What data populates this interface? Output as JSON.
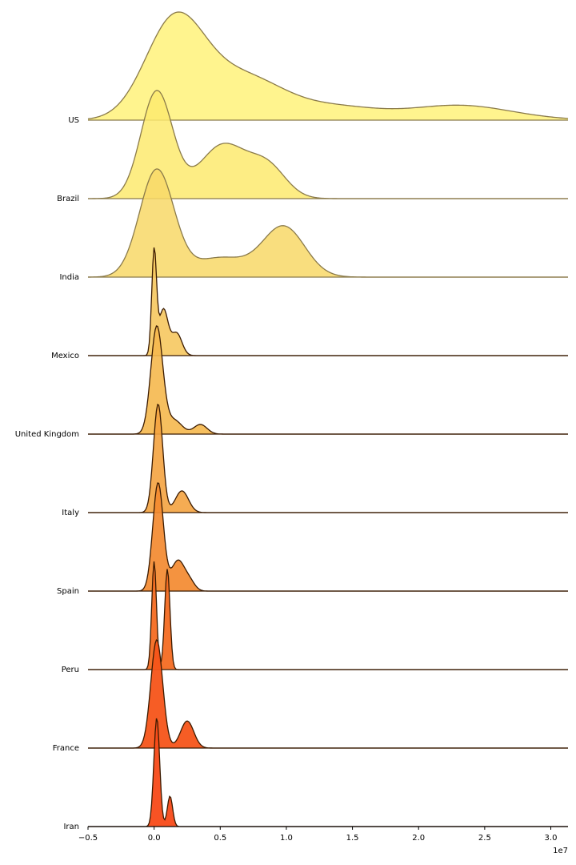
{
  "chart_data": {
    "type": "ridgeline",
    "title": "",
    "xlabel": "",
    "ylabel": "",
    "x_offset_label": "1e7",
    "xlim": [
      -0.5,
      3.13
    ],
    "xticks": [
      {
        "value": -0.5,
        "label": "−0.5"
      },
      {
        "value": 0.0,
        "label": "0.0"
      },
      {
        "value": 0.5,
        "label": "0.5"
      },
      {
        "value": 1.0,
        "label": "1.0"
      },
      {
        "value": 1.5,
        "label": "1.5"
      },
      {
        "value": 2.0,
        "label": "2.0"
      },
      {
        "value": 2.5,
        "label": "2.5"
      },
      {
        "value": 3.0,
        "label": "3.0"
      }
    ],
    "series": [
      {
        "name": "US",
        "color": "#fff27a",
        "edge": "#8a7a4a",
        "opacity": 0.85,
        "peaks": [
          {
            "mu": 0.15,
            "sigma": 0.22,
            "amp": 1.0
          },
          {
            "mu": 0.65,
            "sigma": 0.33,
            "amp": 0.48
          },
          {
            "mu": 1.4,
            "sigma": 0.3,
            "amp": 0.12
          },
          {
            "mu": 2.3,
            "sigma": 0.4,
            "amp": 0.16
          }
        ]
      },
      {
        "name": "Brazil",
        "color": "#fdea6e",
        "edge": "#8a7a4a",
        "opacity": 0.85,
        "peaks": [
          {
            "mu": 0.02,
            "sigma": 0.12,
            "amp": 1.0
          },
          {
            "mu": 0.52,
            "sigma": 0.18,
            "amp": 0.5
          },
          {
            "mu": 0.86,
            "sigma": 0.14,
            "amp": 0.28
          }
        ]
      },
      {
        "name": "India",
        "color": "#f8d867",
        "edge": "#8a7a4a",
        "opacity": 0.85,
        "peaks": [
          {
            "mu": 0.02,
            "sigma": 0.13,
            "amp": 1.0
          },
          {
            "mu": 0.5,
            "sigma": 0.2,
            "amp": 0.18
          },
          {
            "mu": 0.98,
            "sigma": 0.16,
            "amp": 0.47
          }
        ]
      },
      {
        "name": "Mexico",
        "color": "#f6c85f",
        "edge": "#3a1a00",
        "opacity": 0.9,
        "peaks": [
          {
            "mu": 0.0,
            "sigma": 0.018,
            "amp": 1.0
          },
          {
            "mu": 0.07,
            "sigma": 0.035,
            "amp": 0.45
          },
          {
            "mu": 0.17,
            "sigma": 0.04,
            "amp": 0.22
          }
        ]
      },
      {
        "name": "United Kingdom",
        "color": "#f5b84e",
        "edge": "#3a1a00",
        "opacity": 0.9,
        "peaks": [
          {
            "mu": 0.02,
            "sigma": 0.045,
            "amp": 1.0
          },
          {
            "mu": 0.15,
            "sigma": 0.06,
            "amp": 0.13
          },
          {
            "mu": 0.35,
            "sigma": 0.05,
            "amp": 0.09
          }
        ]
      },
      {
        "name": "Italy",
        "color": "#f4a340",
        "edge": "#3a1a00",
        "opacity": 0.9,
        "peaks": [
          {
            "mu": 0.03,
            "sigma": 0.035,
            "amp": 1.0
          },
          {
            "mu": 0.21,
            "sigma": 0.05,
            "amp": 0.2
          }
        ]
      },
      {
        "name": "Spain",
        "color": "#f38a30",
        "edge": "#3a1a00",
        "opacity": 0.92,
        "peaks": [
          {
            "mu": 0.03,
            "sigma": 0.04,
            "amp": 1.0
          },
          {
            "mu": 0.18,
            "sigma": 0.05,
            "amp": 0.28
          },
          {
            "mu": 0.27,
            "sigma": 0.04,
            "amp": 0.08
          }
        ]
      },
      {
        "name": "Peru",
        "color": "#f46c22",
        "edge": "#3a1a00",
        "opacity": 0.95,
        "peaks": [
          {
            "mu": 0.0,
            "sigma": 0.018,
            "amp": 1.0
          },
          {
            "mu": 0.1,
            "sigma": 0.02,
            "amp": 0.93
          }
        ]
      },
      {
        "name": "France",
        "color": "#f65419",
        "edge": "#3a1a00",
        "opacity": 0.95,
        "peaks": [
          {
            "mu": 0.02,
            "sigma": 0.045,
            "amp": 1.0
          },
          {
            "mu": 0.25,
            "sigma": 0.05,
            "amp": 0.25
          }
        ]
      },
      {
        "name": "Iran",
        "color": "#f84a18",
        "edge": "#3a1a00",
        "opacity": 0.95,
        "peaks": [
          {
            "mu": 0.02,
            "sigma": 0.022,
            "amp": 1.0
          },
          {
            "mu": 0.12,
            "sigma": 0.02,
            "amp": 0.28
          }
        ]
      }
    ]
  }
}
